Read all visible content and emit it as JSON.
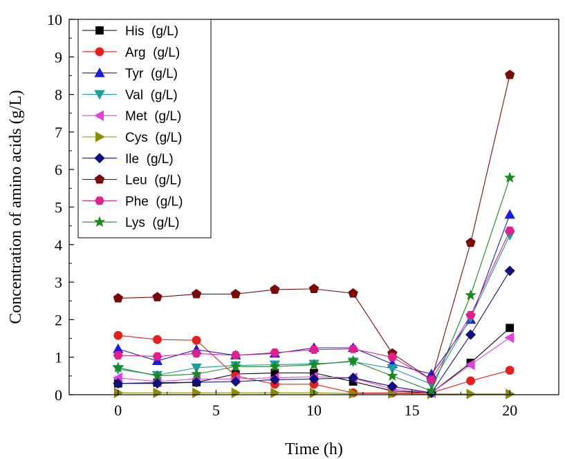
{
  "chart_data": {
    "type": "line",
    "title": "",
    "xlabel": "Time (h)",
    "ylabel": "Concentration of amino acids (g/L)",
    "xlim": [
      -2.5,
      22.5
    ],
    "ylim": [
      0,
      10
    ],
    "xticks": [
      0,
      5,
      10,
      15,
      20
    ],
    "yticks": [
      0,
      1,
      2,
      3,
      4,
      5,
      6,
      7,
      8,
      9,
      10
    ],
    "grid": false,
    "legend_position": "top-left",
    "x": [
      0,
      2,
      4,
      6,
      8,
      10,
      12,
      14,
      16,
      18,
      20
    ],
    "series": [
      {
        "name": "His  (g/L)",
        "color": "#000000",
        "marker": "square",
        "values": [
          0.3,
          0.32,
          0.33,
          0.55,
          0.58,
          0.58,
          0.35,
          0.1,
          0.05,
          0.85,
          1.78
        ]
      },
      {
        "name": "Arg  (g/L)",
        "color": "#e8201c",
        "marker": "circle",
        "values": [
          1.58,
          1.47,
          1.45,
          0.5,
          0.28,
          0.28,
          0.05,
          0.05,
          0.05,
          0.37,
          0.65
        ]
      },
      {
        "name": "Tyr  (g/L)",
        "color": "#1a1ae0",
        "marker": "triangle-up",
        "values": [
          1.22,
          0.9,
          1.2,
          1.05,
          1.1,
          1.25,
          1.25,
          0.82,
          0.55,
          2.0,
          4.8
        ]
      },
      {
        "name": "Val  (g/L)",
        "color": "#1a9e9e",
        "marker": "triangle-down",
        "values": [
          0.68,
          0.52,
          0.72,
          0.78,
          0.8,
          0.82,
          0.88,
          0.7,
          0.28,
          2.05,
          4.25
        ]
      },
      {
        "name": "Met  (g/L)",
        "color": "#e040e0",
        "marker": "triangle-left",
        "values": [
          0.45,
          0.35,
          0.42,
          0.42,
          0.45,
          0.48,
          0.45,
          0.15,
          0.05,
          0.8,
          1.52
        ]
      },
      {
        "name": "Cys  (g/L)",
        "color": "#8c8c00",
        "marker": "triangle-right",
        "values": [
          0.05,
          0.05,
          0.05,
          0.05,
          0.05,
          0.05,
          0.03,
          0.03,
          0.02,
          0.02,
          0.02
        ]
      },
      {
        "name": "Ile  (g/L)",
        "color": "#10107a",
        "marker": "diamond",
        "values": [
          0.3,
          0.3,
          0.33,
          0.35,
          0.4,
          0.42,
          0.45,
          0.22,
          0.05,
          1.6,
          3.3
        ]
      },
      {
        "name": "Leu  (g/L)",
        "color": "#7a0a0a",
        "marker": "pentagon",
        "values": [
          2.57,
          2.6,
          2.68,
          2.68,
          2.8,
          2.82,
          2.7,
          1.1,
          0.4,
          4.05,
          8.52
        ]
      },
      {
        "name": "Phe  (g/L)",
        "color": "#e0208c",
        "marker": "hexagon",
        "values": [
          1.05,
          1.02,
          1.1,
          1.05,
          1.12,
          1.2,
          1.22,
          1.0,
          0.4,
          2.12,
          4.37
        ]
      },
      {
        "name": "Lys  (g/L)",
        "color": "#1a8a1a",
        "marker": "star",
        "values": [
          0.72,
          0.5,
          0.55,
          0.75,
          0.75,
          0.8,
          0.9,
          0.5,
          0.1,
          2.65,
          5.78
        ]
      }
    ]
  }
}
